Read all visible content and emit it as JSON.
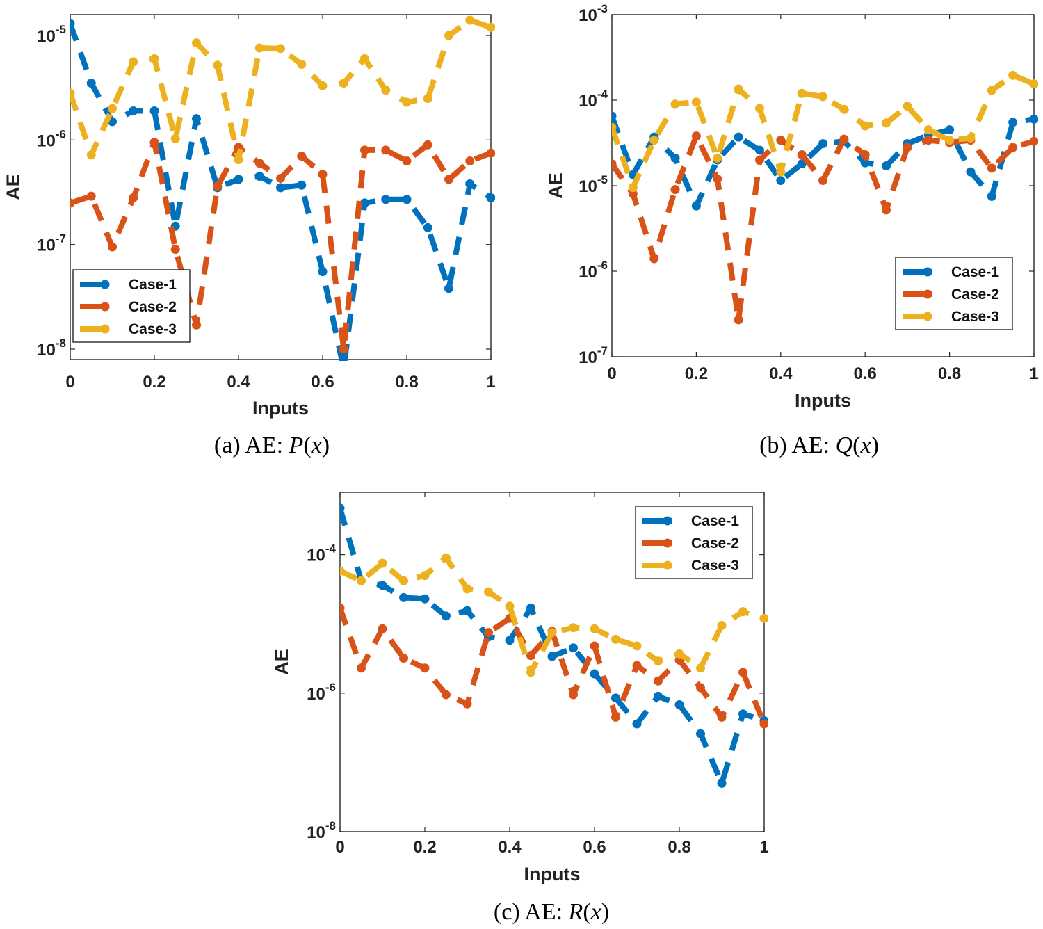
{
  "colors": {
    "Case-1": "#0072BD",
    "Case-2": "#D95319",
    "Case-3": "#EDB120"
  },
  "chart_data": [
    {
      "type": "line",
      "caption": {
        "prefix": "(a) AE: ",
        "var": "P",
        "open": "(",
        "arg": "x",
        "close": ")"
      },
      "xlabel": "Inputs",
      "ylabel": "AE",
      "yscale": "log",
      "xlim": [
        0,
        1
      ],
      "ylim_exp": [
        -8.1,
        -4.8
      ],
      "xticks": [
        "0",
        "0.2",
        "0.4",
        "0.6",
        "0.8",
        "1"
      ],
      "yticks_exp": [
        "-8",
        "-7",
        "-6",
        "-5"
      ],
      "legend": "bottom-left",
      "x": [
        0,
        0.05,
        0.1,
        0.15,
        0.2,
        0.25,
        0.3,
        0.35,
        0.4,
        0.45,
        0.5,
        0.55,
        0.6,
        0.65,
        0.7,
        0.75,
        0.8,
        0.85,
        0.9,
        0.95,
        1
      ],
      "series": [
        {
          "name": "Case-1",
          "values": [
            1.3e-05,
            3.5e-06,
            1.5e-06,
            1.9e-06,
            1.9e-06,
            1.5e-07,
            1.6e-06,
            3.5e-07,
            4.2e-07,
            4.5e-07,
            3.5e-07,
            3.7e-07,
            5.5e-08,
            6.5e-09,
            2.5e-07,
            2.7e-07,
            2.7e-07,
            1.45e-07,
            3.8e-08,
            3.8e-07,
            2.8e-07
          ]
        },
        {
          "name": "Case-2",
          "values": [
            2.5e-07,
            2.9e-07,
            9.5e-08,
            2.8e-07,
            9.5e-07,
            9e-08,
            1.7e-08,
            3.6e-07,
            8.5e-07,
            6e-07,
            4.3e-07,
            7e-07,
            4.7e-07,
            1e-08,
            8e-07,
            8e-07,
            6.3e-07,
            9e-07,
            4.2e-07,
            6.3e-07,
            7.5e-07
          ]
        },
        {
          "name": "Case-3",
          "values": [
            2.8e-06,
            7.2e-07,
            2e-06,
            5.6e-06,
            6e-06,
            1.03e-06,
            8.5e-06,
            5.2e-06,
            6.5e-07,
            7.6e-06,
            7.5e-06,
            5.3e-06,
            3.3e-06,
            3.5e-06,
            6e-06,
            3e-06,
            2.3e-06,
            2.5e-06,
            1e-05,
            1.4e-05,
            1.2e-05
          ]
        }
      ]
    },
    {
      "type": "line",
      "caption": {
        "prefix": "(b) AE: ",
        "var": "Q",
        "open": "(",
        "arg": "x",
        "close": ")"
      },
      "xlabel": "Inputs",
      "ylabel": "AE",
      "yscale": "log",
      "xlim": [
        0,
        1
      ],
      "ylim_exp": [
        -7,
        -3
      ],
      "xticks": [
        "0",
        "0.2",
        "0.4",
        "0.6",
        "0.8",
        "1"
      ],
      "yticks_exp": [
        "-7",
        "-6",
        "-5",
        "-4",
        "-3"
      ],
      "legend": "bottom-right",
      "x": [
        0,
        0.05,
        0.1,
        0.15,
        0.2,
        0.25,
        0.3,
        0.35,
        0.4,
        0.45,
        0.5,
        0.55,
        0.6,
        0.65,
        0.7,
        0.75,
        0.8,
        0.85,
        0.9,
        0.95,
        1
      ],
      "series": [
        {
          "name": "Case-1",
          "values": [
            6.5e-05,
            1.35e-05,
            3.7e-05,
            2.1e-05,
            5.8e-06,
            2e-05,
            3.7e-05,
            2.6e-05,
            1.15e-05,
            1.8e-05,
            3.1e-05,
            3.3e-05,
            1.85e-05,
            1.7e-05,
            3.1e-05,
            3.9e-05,
            4.5e-05,
            1.45e-05,
            7.5e-06,
            5.5e-05,
            6e-05
          ]
        },
        {
          "name": "Case-2",
          "values": [
            1.8e-05,
            8e-06,
            1.4e-06,
            9e-06,
            3.8e-05,
            1.2e-05,
            2.7e-07,
            2e-05,
            3.4e-05,
            2.3e-05,
            1.15e-05,
            3.5e-05,
            2.3e-05,
            5.2e-06,
            2.8e-05,
            3.4e-05,
            3.2e-05,
            3.4e-05,
            1.6e-05,
            2.8e-05,
            3.3e-05
          ]
        },
        {
          "name": "Case-3",
          "values": [
            4.8e-05,
            9.5e-06,
            3.4e-05,
            9e-05,
            9.5e-05,
            2.1e-05,
            0.000135,
            8e-05,
            1.45e-05,
            0.00012,
            0.00011,
            7.8e-05,
            5e-05,
            5.4e-05,
            8.5e-05,
            4.5e-05,
            3.4e-05,
            3.6e-05,
            0.00013,
            0.000195,
            0.000155
          ]
        }
      ]
    },
    {
      "type": "line",
      "caption": {
        "prefix": "(c) AE: ",
        "var": "R",
        "open": "(",
        "arg": "x",
        "close": ")"
      },
      "xlabel": "Inputs",
      "ylabel": "AE",
      "yscale": "log",
      "xlim": [
        0,
        1
      ],
      "ylim_exp": [
        -8,
        -3.1
      ],
      "xticks": [
        "0",
        "0.2",
        "0.4",
        "0.6",
        "0.8",
        "1"
      ],
      "yticks_exp": [
        "-8",
        "-6",
        "-4"
      ],
      "legend": "top-right",
      "x": [
        0,
        0.05,
        0.1,
        0.15,
        0.2,
        0.25,
        0.3,
        0.35,
        0.4,
        0.45,
        0.5,
        0.55,
        0.6,
        0.65,
        0.7,
        0.75,
        0.8,
        0.85,
        0.9,
        0.95,
        1
      ],
      "series": [
        {
          "name": "Case-1",
          "values": [
            0.00047,
            4.2e-05,
            3.6e-05,
            2.4e-05,
            2.3e-05,
            1.3e-05,
            1.55e-05,
            6.5e-06,
            5.8e-06,
            1.7e-05,
            3.4e-06,
            4.5e-06,
            1.9e-06,
            8.5e-07,
            3.6e-07,
            9e-07,
            6.8e-07,
            2.6e-07,
            5e-08,
            5e-07,
            4e-07
          ]
        },
        {
          "name": "Case-2",
          "values": [
            1.7e-05,
            2.3e-06,
            8.5e-06,
            3.2e-06,
            2.3e-06,
            9.5e-07,
            7e-07,
            7.5e-06,
            1.2e-05,
            3.5e-06,
            7.8e-06,
            9.5e-07,
            4.8e-06,
            4.5e-07,
            2.5e-06,
            1.5e-06,
            3e-06,
            1.2e-06,
            4.5e-07,
            2e-06,
            3.6e-07
          ]
        },
        {
          "name": "Case-3",
          "values": [
            5.8e-05,
            4.2e-05,
            7.5e-05,
            4.2e-05,
            5e-05,
            9e-05,
            3.2e-05,
            2.9e-05,
            1.8e-05,
            2e-06,
            7.5e-06,
            8.8e-06,
            8.5e-06,
            6e-06,
            4.8e-06,
            2.9e-06,
            3.7e-06,
            2.3e-06,
            9.5e-06,
            1.5e-05,
            1.2e-05
          ]
        }
      ]
    }
  ]
}
